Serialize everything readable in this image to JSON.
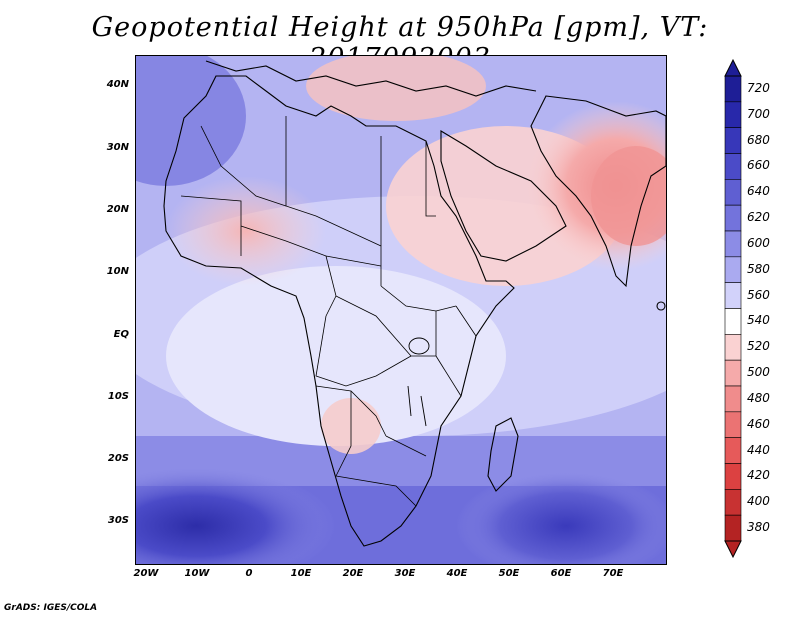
{
  "title": "Geopotential Height at 950hPa [gpm], VT: 2017092003",
  "credit": "GrADS: IGES/COLA",
  "axes": {
    "lat_labels": [
      "40N",
      "30N",
      "20N",
      "10N",
      "EQ",
      "10S",
      "20S",
      "30S"
    ],
    "lat_values": [
      40,
      30,
      20,
      10,
      0,
      -10,
      -20,
      -30
    ],
    "lon_labels": [
      "20W",
      "10W",
      "0",
      "10E",
      "20E",
      "30E",
      "40E",
      "50E",
      "60E",
      "70E"
    ],
    "lon_values": [
      -20,
      -10,
      0,
      10,
      20,
      30,
      40,
      50,
      60,
      70
    ],
    "lon_range": [
      -22,
      80
    ],
    "lat_range": [
      -37,
      45
    ]
  },
  "colorbar": {
    "levels": [
      "720",
      "700",
      "680",
      "660",
      "640",
      "620",
      "600",
      "580",
      "560",
      "540",
      "520",
      "500",
      "480",
      "460",
      "440",
      "420",
      "400",
      "380"
    ],
    "colors": [
      "#1e1e96",
      "#2828aa",
      "#3737b9",
      "#4b4bc8",
      "#5f5fd2",
      "#7373dc",
      "#8c8ce6",
      "#aaaaf0",
      "#d2d2fa",
      "#ffffff",
      "#fad2d2",
      "#f5aaaa",
      "#f08c8c",
      "#eb7373",
      "#e65a5a",
      "#dc4141",
      "#c83232",
      "#b42323"
    ]
  },
  "colors": {
    "land_ocean_base": "#aaaaf0",
    "low_blue": "#5f5fd2",
    "high_red": "#f08c8c",
    "border": "#000000"
  }
}
